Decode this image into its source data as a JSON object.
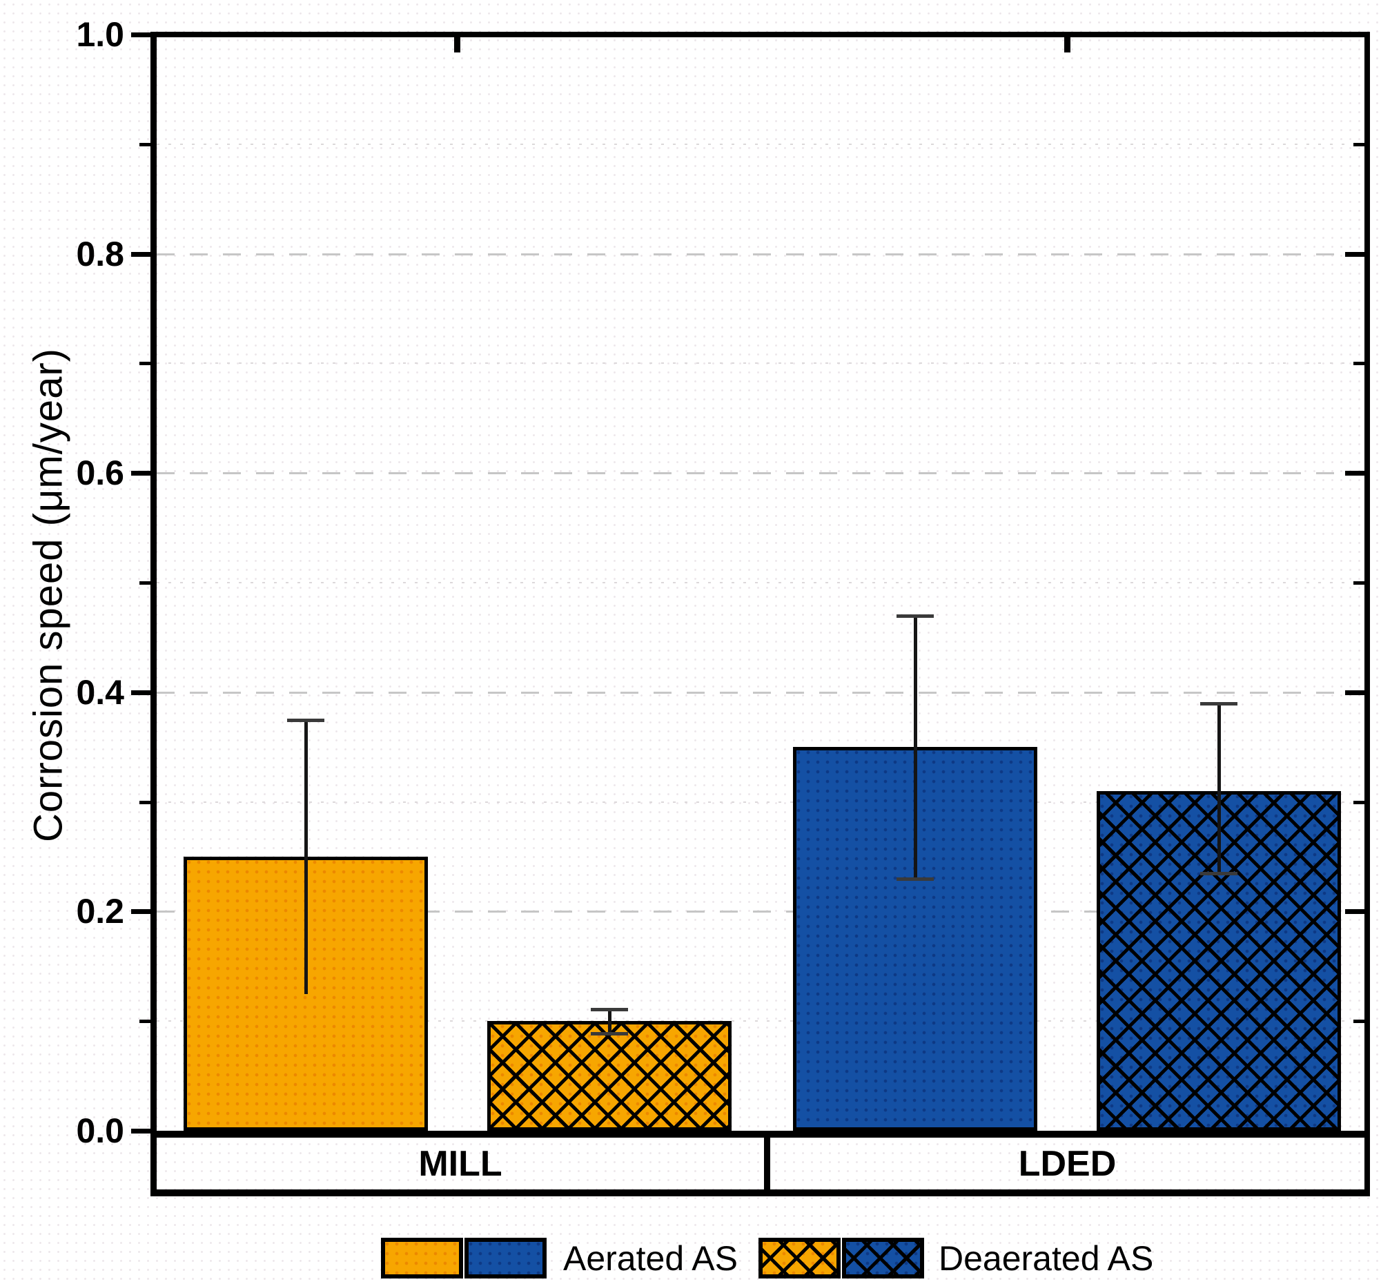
{
  "chart": {
    "y_axis": {
      "title": "Corrosion speed (μm/year)",
      "min": 0.0,
      "max": 1.0,
      "major_step": 0.2,
      "minor_step": 0.1,
      "tick_labels": [
        "0.0",
        "0.2",
        "0.4",
        "0.6",
        "0.8",
        "1.0"
      ]
    },
    "groups": [
      {
        "label": "MILL"
      },
      {
        "label": "LDED"
      }
    ],
    "legend": [
      {
        "label": "Aerated AS",
        "pattern": "solid"
      },
      {
        "label": "Deaerated AS",
        "pattern": "crosshatch"
      }
    ]
  },
  "chart_data": {
    "type": "bar",
    "title": "",
    "xlabel": "",
    "ylabel": "Corrosion speed (μm/year)",
    "ylim": [
      0.0,
      1.0
    ],
    "grid": "horizontal; dashed major gridlines every 0.2, faint dotted minor gridlines every 0.1",
    "legend_position": "bottom",
    "categories": [
      "MILL",
      "LDED"
    ],
    "series": [
      {
        "name": "Aerated AS",
        "pattern": "solid",
        "values": [
          0.25,
          0.35
        ],
        "error_plus": [
          0.125,
          0.12
        ],
        "error_minus": [
          0.125,
          0.12
        ],
        "bar_colors": [
          "#F7A600",
          "#1450A4"
        ]
      },
      {
        "name": "Deaerated AS",
        "pattern": "crosshatch",
        "values": [
          0.1,
          0.31
        ],
        "error_plus": [
          0.011,
          0.08
        ],
        "error_minus": [
          0.011,
          0.075
        ],
        "bar_colors": [
          "#F7A600",
          "#1450A4"
        ]
      }
    ]
  },
  "colors": {
    "orange": "#F7A600",
    "orange_dot": "rgba(228,112,0,0.55)",
    "blue": "#1450A4",
    "blue_dot": "rgba(9,42,112,0.6)",
    "hatch_line": "#000000",
    "axis": "#000000",
    "grid_major": "#c6c6c6",
    "grid_minor": "#dcd8da"
  }
}
